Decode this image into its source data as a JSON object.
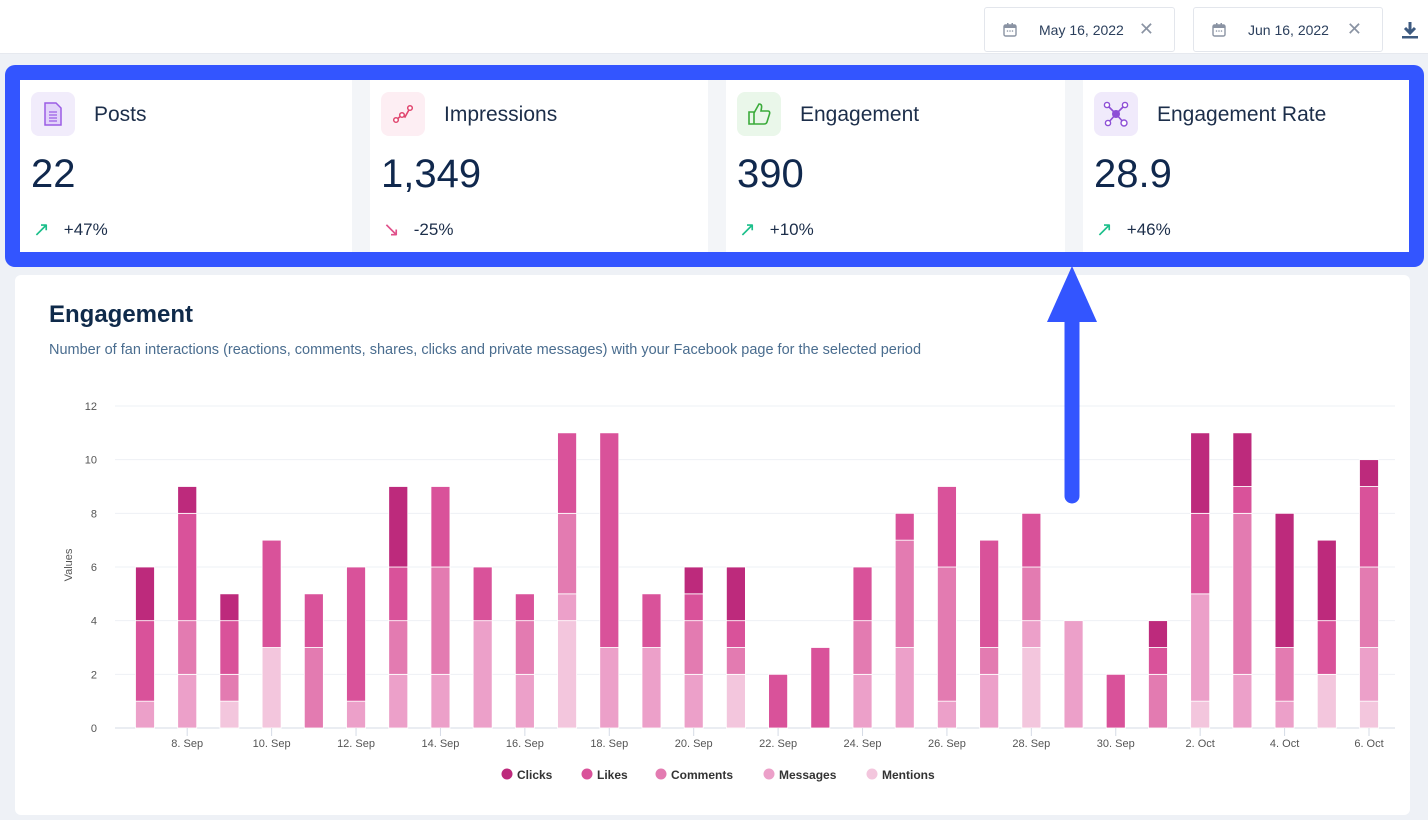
{
  "header": {
    "start_date": "May 16, 2022",
    "end_date": "Jun 16, 2022",
    "clear_icon": "close-icon",
    "calendar_icon": "calendar-icon",
    "download_icon": "download-icon"
  },
  "highlight_color": "#3355ff",
  "cards": [
    {
      "label": "Posts",
      "value": "22",
      "change": "+47%",
      "direction": "up",
      "icon": "document-icon",
      "icon_bg": "#f1ecfb",
      "icon_color": "#9b5de5"
    },
    {
      "label": "Impressions",
      "value": "1,349",
      "change": "-25%",
      "direction": "down",
      "icon": "share-nodes-icon",
      "icon_bg": "#fdeef3",
      "icon_color": "#e0456e"
    },
    {
      "label": "Engagement",
      "value": "390",
      "change": "+10%",
      "direction": "up",
      "icon": "thumbs-up-icon",
      "icon_bg": "#eaf7ea",
      "icon_color": "#3bab3b"
    },
    {
      "label": "Engagement Rate",
      "value": "28.9",
      "change": "+46%",
      "direction": "up",
      "icon": "network-icon",
      "icon_bg": "#f0eafb",
      "icon_color": "#8d4fd6"
    }
  ],
  "trend_colors": {
    "up": "#1bbf8a",
    "down": "#e0508a"
  },
  "panel": {
    "title": "Engagement",
    "subtitle": "Number of fan interactions (reactions, comments, shares, clicks and private messages) with your Facebook page for the selected period"
  },
  "chart_data": {
    "type": "bar",
    "stacked": true,
    "ylabel": "Values",
    "ylim": [
      0,
      12
    ],
    "yticks": [
      0,
      2,
      4,
      6,
      8,
      10,
      12
    ],
    "grid": true,
    "legend": "bottom",
    "categories": [
      "7. Sep",
      "8. Sep",
      "9. Sep",
      "10. Sep",
      "11. Sep",
      "12. Sep",
      "13. Sep",
      "14. Sep",
      "15. Sep",
      "16. Sep",
      "17. Sep",
      "18. Sep",
      "19. Sep",
      "20. Sep",
      "21. Sep",
      "22. Sep",
      "23. Sep",
      "24. Sep",
      "25. Sep",
      "26. Sep",
      "27. Sep",
      "28. Sep",
      "29. Sep",
      "30. Sep",
      "1. Oct",
      "2. Oct",
      "3. Oct",
      "4. Oct",
      "5. Oct",
      "6. Oct"
    ],
    "xtick_labels": [
      "8. Sep",
      "10. Sep",
      "12. Sep",
      "14. Sep",
      "16. Sep",
      "18. Sep",
      "20. Sep",
      "22. Sep",
      "24. Sep",
      "26. Sep",
      "28. Sep",
      "30. Sep",
      "2. Oct",
      "4. Oct",
      "6. Oct"
    ],
    "series": [
      {
        "name": "Clicks",
        "color": "#bd2a7c",
        "values": [
          2,
          1,
          1,
          0,
          0,
          0,
          3,
          0,
          0,
          0,
          0,
          0,
          0,
          1,
          2,
          0,
          0,
          0,
          0,
          0,
          0,
          0,
          0,
          0,
          1,
          3,
          2,
          5,
          3,
          1
        ]
      },
      {
        "name": "Likes",
        "color": "#d9529a",
        "values": [
          3,
          4,
          2,
          4,
          2,
          5,
          2,
          3,
          2,
          1,
          3,
          8,
          2,
          1,
          1,
          2,
          3,
          2,
          1,
          3,
          4,
          2,
          0,
          2,
          1,
          3,
          1,
          0,
          2,
          3
        ]
      },
      {
        "name": "Comments",
        "color": "#e37bb1",
        "values": [
          0,
          2,
          1,
          0,
          3,
          0,
          2,
          4,
          0,
          2,
          3,
          0,
          0,
          2,
          1,
          0,
          0,
          2,
          4,
          5,
          1,
          2,
          0,
          0,
          2,
          0,
          6,
          2,
          0,
          3
        ]
      },
      {
        "name": "Messages",
        "color": "#eca0c9",
        "values": [
          1,
          2,
          0,
          0,
          0,
          1,
          2,
          2,
          4,
          2,
          1,
          3,
          3,
          2,
          0,
          0,
          0,
          2,
          3,
          1,
          2,
          1,
          4,
          0,
          0,
          4,
          2,
          1,
          0,
          2
        ]
      },
      {
        "name": "Mentions",
        "color": "#f3c6dd",
        "values": [
          0,
          0,
          1,
          3,
          0,
          0,
          0,
          0,
          0,
          0,
          4,
          0,
          0,
          0,
          2,
          0,
          0,
          0,
          0,
          0,
          0,
          3,
          0,
          0,
          0,
          1,
          0,
          0,
          2,
          1
        ]
      }
    ]
  }
}
